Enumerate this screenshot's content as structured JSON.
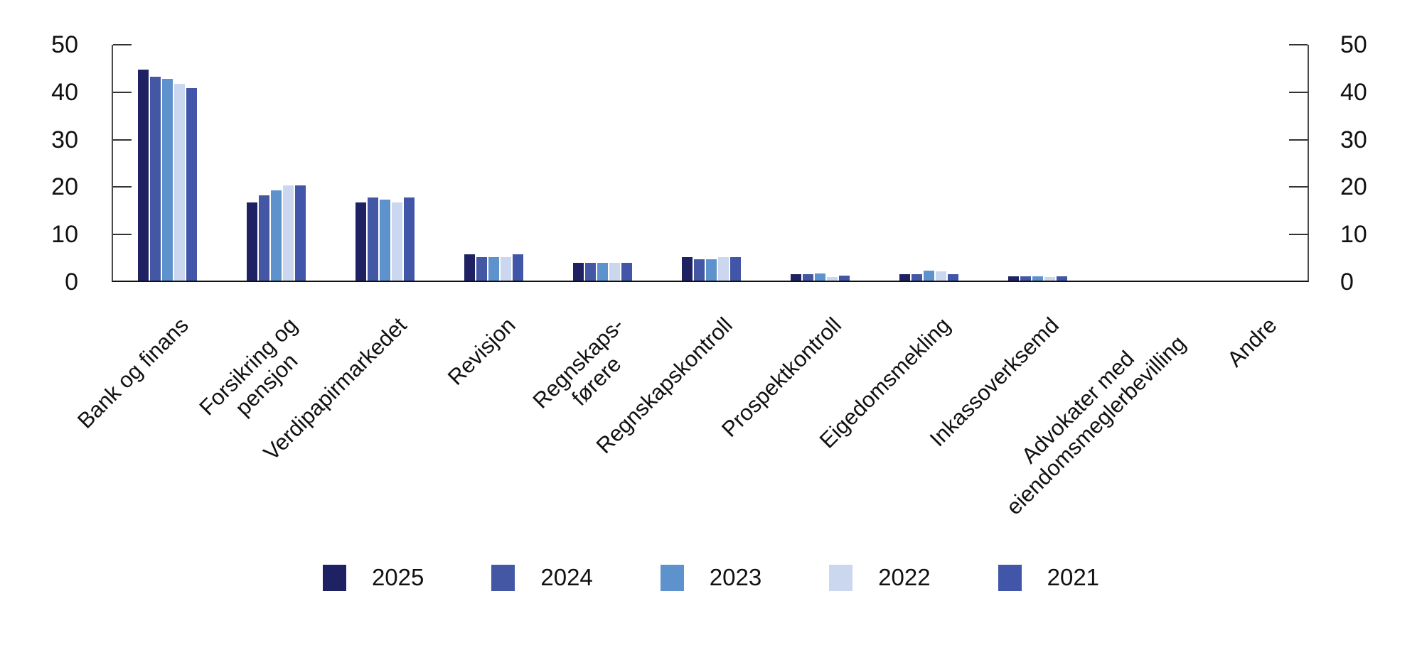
{
  "chart_data": {
    "type": "bar",
    "title": "",
    "xlabel": "",
    "ylabel": "",
    "ylim": [
      0,
      50
    ],
    "yticks": [
      0,
      10,
      20,
      30,
      40,
      50
    ],
    "y_axis_sides": "both",
    "grid": false,
    "legend_position": "bottom",
    "categories": [
      "Bank og finans",
      "Forsikring og\npensjon",
      "Verdipapirmarkedet",
      "Revisjon",
      "Regnskaps-\nførere",
      "Regnskapskontroll",
      "Prospektkontroll",
      "Eigedomsmekling",
      "Inkassoverksemd",
      "Advokater med\neiendomsmeglerbevilling",
      "Andre"
    ],
    "series": [
      {
        "name": "2025",
        "color": "#1e2263",
        "values": [
          44.5,
          16.5,
          16.5,
          5.5,
          3.8,
          5.0,
          1.4,
          1.4,
          0.9,
          0,
          0
        ]
      },
      {
        "name": "2024",
        "color": "#4457a5",
        "values": [
          43.0,
          18.0,
          17.5,
          5.0,
          3.8,
          4.5,
          1.3,
          1.4,
          0.9,
          0,
          0
        ]
      },
      {
        "name": "2023",
        "color": "#5e92cd",
        "values": [
          42.5,
          19.0,
          17.0,
          5.0,
          3.7,
          4.5,
          1.5,
          2.1,
          0.9,
          0,
          0
        ]
      },
      {
        "name": "2022",
        "color": "#cbd7ee",
        "values": [
          41.5,
          20.0,
          16.5,
          5.0,
          3.7,
          5.0,
          0.8,
          1.9,
          0.7,
          0,
          0
        ]
      },
      {
        "name": "2021",
        "color": "#4156a8",
        "values": [
          40.5,
          20.0,
          17.5,
          5.5,
          3.8,
          5.0,
          1.0,
          1.4,
          0.9,
          0,
          0
        ]
      }
    ]
  }
}
